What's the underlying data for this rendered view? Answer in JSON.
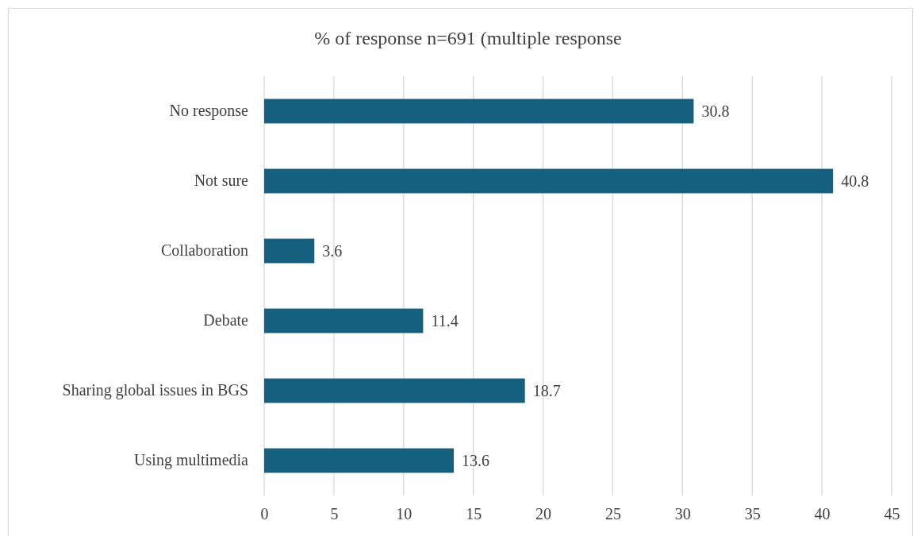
{
  "chart_data": {
    "type": "bar",
    "orientation": "horizontal",
    "title": "% of response n=691 (multiple response",
    "categories": [
      "No response",
      "Not sure",
      "Collaboration",
      "Debate",
      "Sharing global issues in BGS",
      "Using multimedia"
    ],
    "values": [
      30.8,
      40.8,
      3.6,
      11.4,
      18.7,
      13.6
    ],
    "color": "#16607f",
    "xlim": [
      0,
      45
    ],
    "xticks": [
      0,
      5,
      10,
      15,
      20,
      25,
      30,
      35,
      40,
      45
    ],
    "grid": "x",
    "data_labels": true
  }
}
